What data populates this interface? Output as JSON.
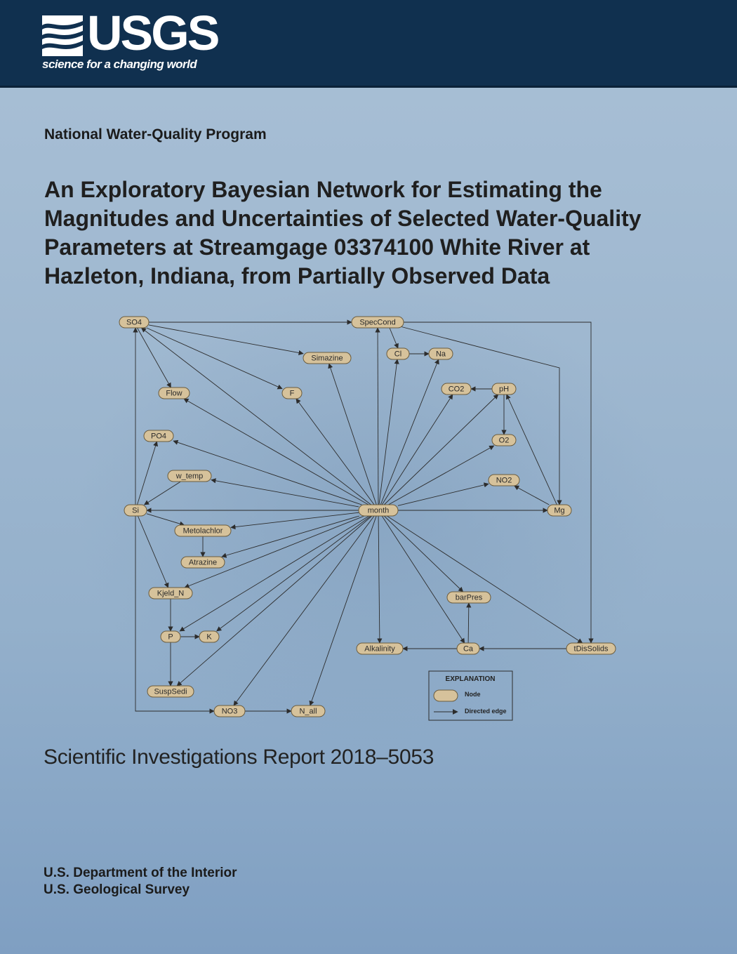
{
  "header": {
    "logo_text": "USGS",
    "tagline": "science for a changing world",
    "background": "#10304f"
  },
  "program": "National Water-Quality Program",
  "title": "An Exploratory Bayesian Network for Estimating the Magnitudes and Uncertainties of Selected Water-Quality Parameters at Streamgage 03374100 White River at Hazleton, Indiana, from Partially Observed Data",
  "figure": {
    "nodes": [
      {
        "id": "SO4",
        "label": "SO4"
      },
      {
        "id": "SpecCond",
        "label": "SpecCond"
      },
      {
        "id": "Cl",
        "label": "Cl"
      },
      {
        "id": "Na",
        "label": "Na"
      },
      {
        "id": "Simazine",
        "label": "Simazine"
      },
      {
        "id": "Flow",
        "label": "Flow"
      },
      {
        "id": "F",
        "label": "F"
      },
      {
        "id": "CO2",
        "label": "CO2"
      },
      {
        "id": "pH",
        "label": "pH"
      },
      {
        "id": "PO4",
        "label": "PO4"
      },
      {
        "id": "O2",
        "label": "O2"
      },
      {
        "id": "w_temp",
        "label": "w_temp"
      },
      {
        "id": "NO2",
        "label": "NO2"
      },
      {
        "id": "Si",
        "label": "Si"
      },
      {
        "id": "month",
        "label": "month"
      },
      {
        "id": "Mg",
        "label": "Mg"
      },
      {
        "id": "Metolachlor",
        "label": "Metolachlor"
      },
      {
        "id": "Atrazine",
        "label": "Atrazine"
      },
      {
        "id": "Kjeld_N",
        "label": "Kjeld_N"
      },
      {
        "id": "barPres",
        "label": "barPres"
      },
      {
        "id": "P",
        "label": "P"
      },
      {
        "id": "K",
        "label": "K"
      },
      {
        "id": "Alkalinity",
        "label": "Alkalinity"
      },
      {
        "id": "Ca",
        "label": "Ca"
      },
      {
        "id": "tDisSolids",
        "label": "tDisSolids"
      },
      {
        "id": "SuspSedi",
        "label": "SuspSedi"
      },
      {
        "id": "NO3",
        "label": "NO3"
      },
      {
        "id": "N_all",
        "label": "N_all"
      }
    ],
    "edges": [
      [
        "SO4",
        "SpecCond"
      ],
      [
        "SO4",
        "Simazine"
      ],
      [
        "SO4",
        "Flow"
      ],
      [
        "SO4",
        "F"
      ],
      [
        "SpecCond",
        "Cl"
      ],
      [
        "Cl",
        "Na"
      ],
      [
        "SpecCond",
        "Mg"
      ],
      [
        "SpecCond",
        "tDisSolids"
      ],
      [
        "pH",
        "CO2"
      ],
      [
        "pH",
        "O2"
      ],
      [
        "Si",
        "SO4"
      ],
      [
        "Si",
        "PO4"
      ],
      [
        "Si",
        "Metolachlor"
      ],
      [
        "Si",
        "Kjeld_N"
      ],
      [
        "Si",
        "NO3"
      ],
      [
        "w_temp",
        "Si"
      ],
      [
        "Metolachlor",
        "Atrazine"
      ],
      [
        "Kjeld_N",
        "P"
      ],
      [
        "P",
        "K"
      ],
      [
        "P",
        "SuspSedi"
      ],
      [
        "NO3",
        "N_all"
      ],
      [
        "Mg",
        "NO2"
      ],
      [
        "Mg",
        "pH"
      ],
      [
        "Ca",
        "barPres"
      ],
      [
        "Ca",
        "Alkalinity"
      ],
      [
        "tDisSolids",
        "Ca"
      ],
      [
        "month",
        "SO4"
      ],
      [
        "month",
        "SpecCond"
      ],
      [
        "month",
        "Cl"
      ],
      [
        "month",
        "Na"
      ],
      [
        "month",
        "Simazine"
      ],
      [
        "month",
        "Flow"
      ],
      [
        "month",
        "F"
      ],
      [
        "month",
        "CO2"
      ],
      [
        "month",
        "pH"
      ],
      [
        "month",
        "PO4"
      ],
      [
        "month",
        "O2"
      ],
      [
        "month",
        "w_temp"
      ],
      [
        "month",
        "NO2"
      ],
      [
        "month",
        "Si"
      ],
      [
        "month",
        "Mg"
      ],
      [
        "month",
        "Metolachlor"
      ],
      [
        "month",
        "Atrazine"
      ],
      [
        "month",
        "Kjeld_N"
      ],
      [
        "month",
        "barPres"
      ],
      [
        "month",
        "P"
      ],
      [
        "month",
        "K"
      ],
      [
        "month",
        "Alkalinity"
      ],
      [
        "month",
        "Ca"
      ],
      [
        "month",
        "tDisSolids"
      ],
      [
        "month",
        "SuspSedi"
      ],
      [
        "month",
        "NO3"
      ],
      [
        "month",
        "N_all"
      ]
    ],
    "explanation": {
      "title": "EXPLANATION",
      "node_label": "Node",
      "edge_label": "Directed edge"
    },
    "colors": {
      "node_fill": "#d6c29b",
      "edge": "#2c2c2c"
    }
  },
  "report": "Scientific Investigations Report 2018–5053",
  "agency": {
    "department": "U.S. Department of the Interior",
    "survey": "U.S. Geological Survey"
  }
}
